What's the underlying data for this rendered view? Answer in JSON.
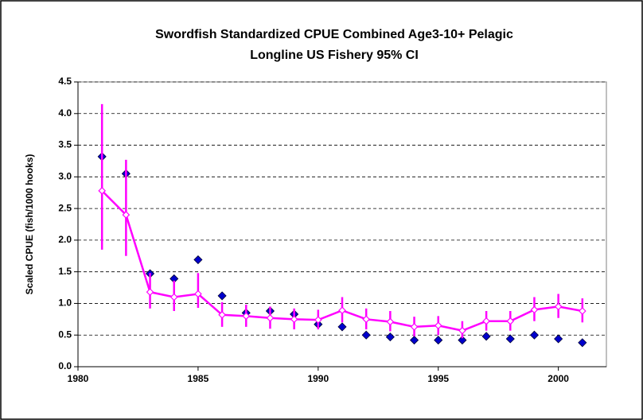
{
  "chart_data": {
    "type": "line",
    "title": [
      "Swordfish Standardized CPUE Combined Age3-10+ Pelagic",
      "Longline US Fishery 95% CI"
    ],
    "y_label": "Scaled CPUE (fish/1000 hooks)",
    "x": [
      1981,
      1982,
      1983,
      1984,
      1985,
      1986,
      1987,
      1988,
      1989,
      1990,
      1991,
      1992,
      1993,
      1994,
      1995,
      1996,
      1997,
      1998,
      1999,
      2000,
      2001
    ],
    "series": [
      {
        "color": "#0000cc",
        "marker": "diamond",
        "line": false,
        "values": [
          3.32,
          3.05,
          1.47,
          1.39,
          1.69,
          1.12,
          0.85,
          0.88,
          0.83,
          0.67,
          0.63,
          0.5,
          0.47,
          0.42,
          0.42,
          0.42,
          0.48,
          0.44,
          0.5,
          0.44,
          0.38
        ]
      },
      {
        "color": "#ff00ff",
        "marker": "open-diamond",
        "line": true,
        "values": [
          2.78,
          2.4,
          1.18,
          1.1,
          1.15,
          0.82,
          0.8,
          0.77,
          0.75,
          0.74,
          0.89,
          0.75,
          0.71,
          0.63,
          0.65,
          0.57,
          0.72,
          0.72,
          0.9,
          0.95,
          0.88
        ],
        "lower": [
          1.85,
          1.75,
          0.92,
          0.88,
          0.93,
          0.63,
          0.63,
          0.6,
          0.59,
          0.59,
          0.7,
          0.59,
          0.56,
          0.48,
          0.5,
          0.45,
          0.57,
          0.57,
          0.72,
          0.77,
          0.7
        ],
        "upper": [
          4.15,
          3.27,
          1.48,
          1.36,
          1.48,
          1.02,
          0.98,
          0.95,
          0.92,
          0.9,
          1.1,
          0.92,
          0.88,
          0.79,
          0.8,
          0.72,
          0.88,
          0.88,
          1.1,
          1.15,
          1.08
        ]
      }
    ],
    "xlim": [
      1980,
      2002
    ],
    "xticks": [
      1980,
      1985,
      1990,
      1995,
      2000
    ],
    "ylim": [
      0,
      4.5
    ],
    "yticks": [
      {
        "value": 0,
        "label": "0.0"
      },
      {
        "value": 0.5,
        "label": "0.5"
      },
      {
        "value": 1,
        "label": "1.0"
      },
      {
        "value": 1.5,
        "label": "1.5"
      },
      {
        "value": 2,
        "label": "2.0"
      },
      {
        "value": 2.5,
        "label": "2.5"
      },
      {
        "value": 3,
        "label": "3.0"
      },
      {
        "value": 3.5,
        "label": "3.5"
      },
      {
        "value": 4,
        "label": "4.0"
      },
      {
        "value": 4.5,
        "label": "4.5"
      }
    ],
    "grid": true
  }
}
